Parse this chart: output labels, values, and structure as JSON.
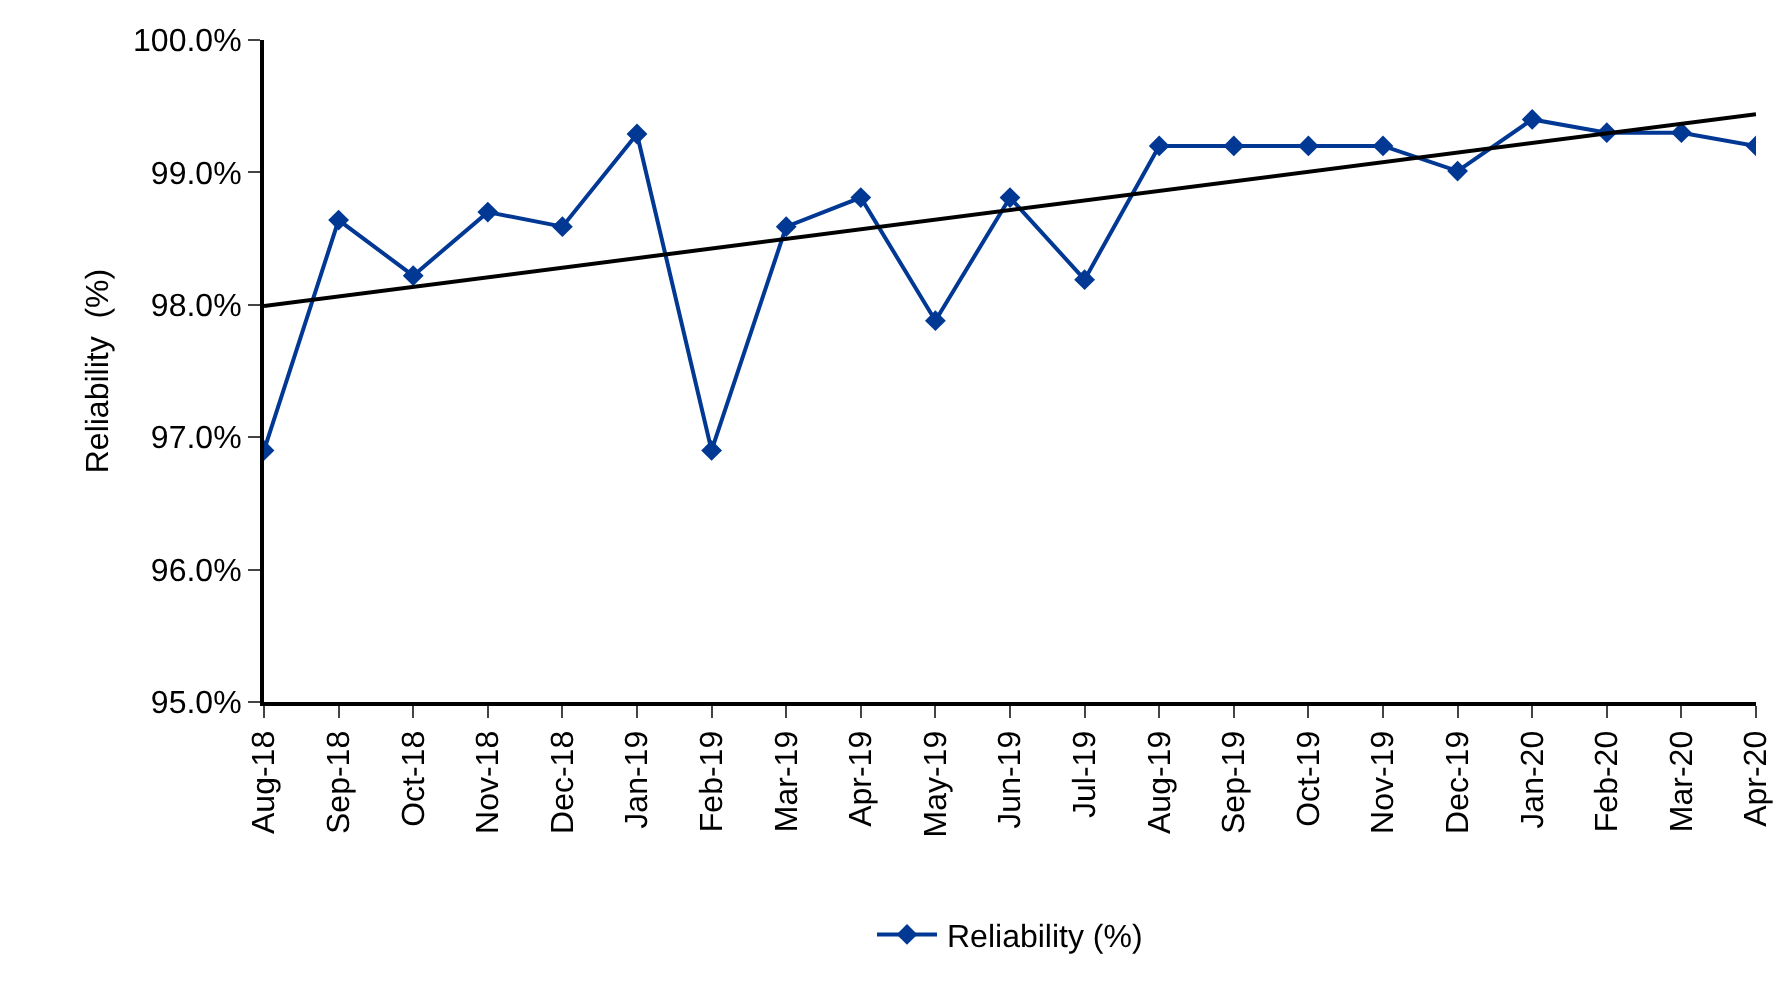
{
  "chart_data": {
    "type": "line",
    "ylabel": "Reliability  (%)",
    "categories": [
      "Aug-18",
      "Sep-18",
      "Oct-18",
      "Nov-18",
      "Dec-18",
      "Jan-19",
      "Feb-19",
      "Mar-19",
      "Apr-19",
      "May-19",
      "Jun-19",
      "Jul-19",
      "Aug-19",
      "Sep-19",
      "Oct-19",
      "Nov-19",
      "Dec-19",
      "Jan-20",
      "Feb-20",
      "Mar-20",
      "Apr-20"
    ],
    "series": [
      {
        "name": "Reliability (%)",
        "color": "#003894",
        "marker": "diamond",
        "values": [
          96.9,
          98.64,
          98.22,
          98.7,
          98.59,
          99.29,
          96.9,
          98.59,
          98.81,
          97.88,
          98.81,
          98.19,
          99.2,
          99.2,
          99.2,
          99.2,
          99.01,
          99.4,
          99.3,
          99.3,
          99.2
        ]
      },
      {
        "type": "line",
        "color": "#000000",
        "marker": "none",
        "x": [
          "Aug-18",
          "Apr-20"
        ],
        "values": [
          97.99,
          99.44
        ]
      }
    ],
    "ylim": [
      95,
      100
    ],
    "yticks": [
      {
        "value": 95,
        "label": "95.0%"
      },
      {
        "value": 96,
        "label": "96.0%"
      },
      {
        "value": 97,
        "label": "97.0%"
      },
      {
        "value": 98,
        "label": "98.0%"
      },
      {
        "value": 99,
        "label": "99.0%"
      },
      {
        "value": 100,
        "label": "100.0%"
      }
    ],
    "grid": false,
    "legend": "bottom",
    "line_style": "solid"
  }
}
